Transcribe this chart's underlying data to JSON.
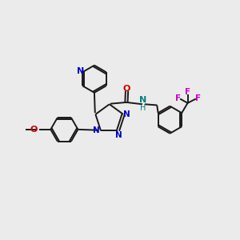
{
  "bg_color": "#ebebeb",
  "bond_color": "#1a1a1a",
  "bond_width": 1.4,
  "figsize": [
    3.0,
    3.0
  ],
  "dpi": 100,
  "xlim": [
    0,
    10
  ],
  "ylim": [
    0,
    10
  ],
  "blue": "#0000cc",
  "red": "#cc0000",
  "teal": "#008080",
  "magenta": "#cc00cc",
  "orange_red": "#dd2200"
}
